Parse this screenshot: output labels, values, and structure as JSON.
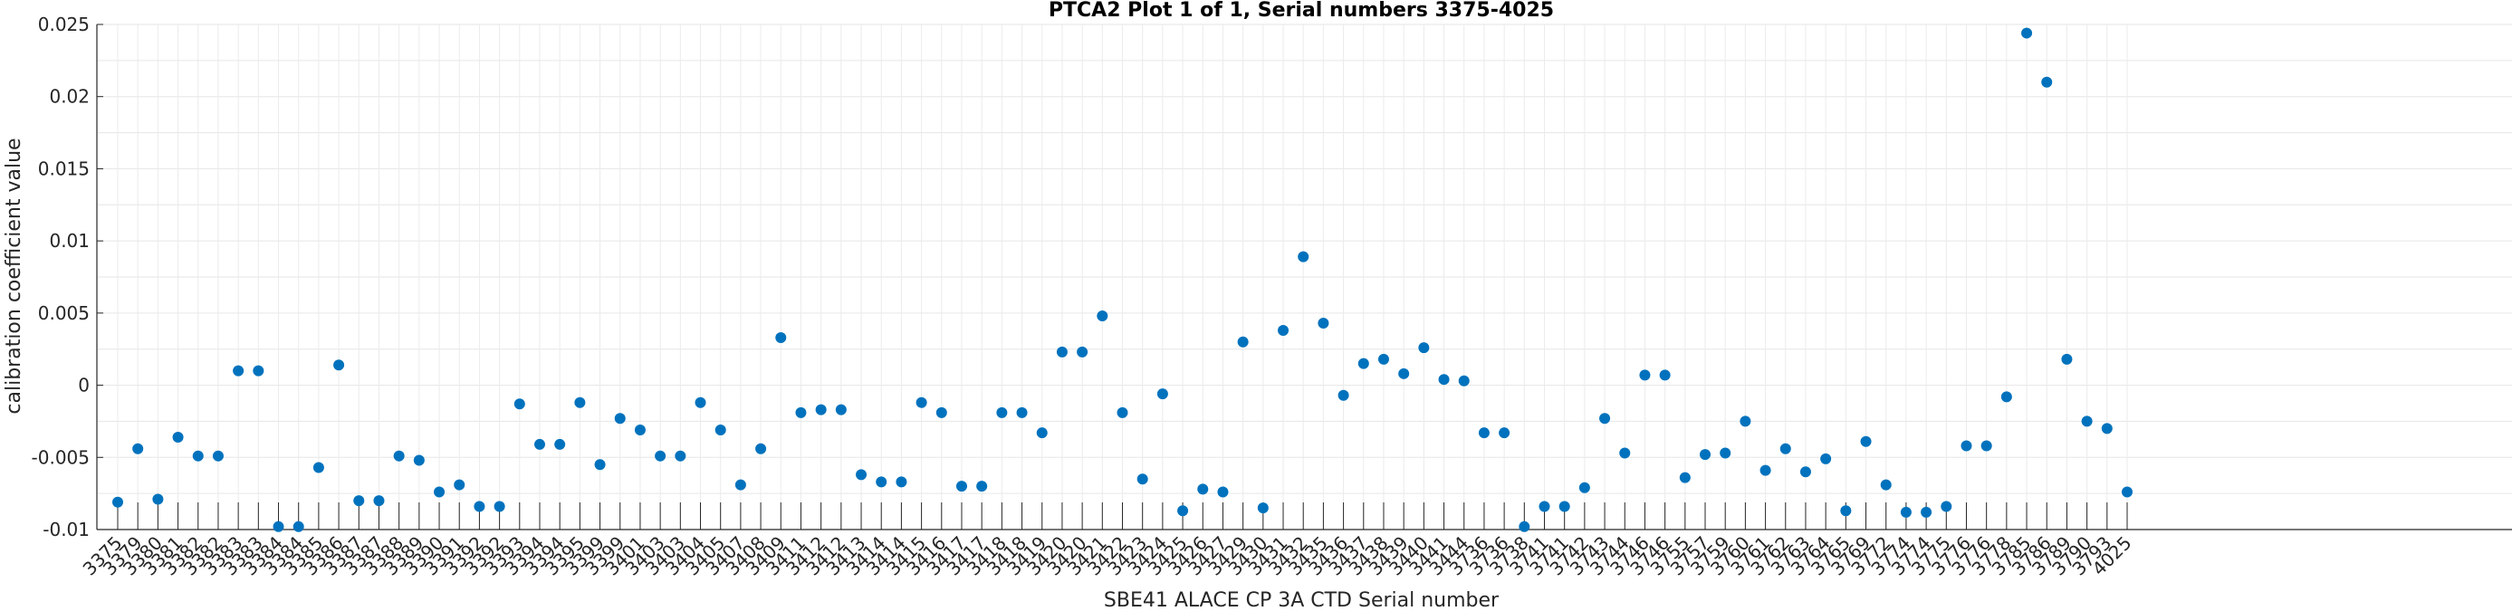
{
  "chart_data": {
    "type": "scatter",
    "title": "PTCA2 Plot 1 of 1, Serial numbers 3375-4025",
    "xlabel": "SBE41 ALACE CP 3A CTD Serial number",
    "ylabel": "calibration coefficient value",
    "ylim": [
      -0.01,
      0.025
    ],
    "yticks": [
      "-0.01",
      "-0.005",
      "0",
      "0.005",
      "0.01",
      "0.015",
      "0.02",
      "0.025"
    ],
    "grid": true,
    "marker_color": "#0072BD",
    "categories": [
      "3375",
      "3379",
      "3380",
      "3381",
      "3382",
      "3382",
      "3383",
      "3383",
      "3384",
      "3384",
      "3385",
      "3386",
      "3387",
      "3387",
      "3388",
      "3389",
      "3390",
      "3391",
      "3392",
      "3392",
      "3393",
      "3394",
      "3394",
      "3395",
      "3399",
      "3399",
      "3401",
      "3403",
      "3403",
      "3404",
      "3405",
      "3407",
      "3408",
      "3409",
      "3411",
      "3412",
      "3412",
      "3413",
      "3414",
      "3414",
      "3415",
      "3416",
      "3417",
      "3417",
      "3418",
      "3418",
      "3419",
      "3420",
      "3420",
      "3421",
      "3422",
      "3423",
      "3424",
      "3425",
      "3426",
      "3427",
      "3429",
      "3430",
      "3431",
      "3432",
      "3435",
      "3436",
      "3437",
      "3438",
      "3439",
      "3440",
      "3441",
      "3444",
      "3736",
      "3736",
      "3738",
      "3741",
      "3741",
      "3742",
      "3743",
      "3744",
      "3746",
      "3746",
      "3755",
      "3757",
      "3759",
      "3760",
      "3761",
      "3762",
      "3763",
      "3764",
      "3765",
      "3769",
      "3772",
      "3774",
      "3774",
      "3775",
      "3776",
      "3776",
      "3778",
      "3785",
      "3786",
      "3789",
      "3790",
      "3793",
      "4025"
    ],
    "values": [
      -0.0081,
      -0.0044,
      -0.0079,
      -0.0036,
      -0.0049,
      -0.0049,
      0.001,
      0.001,
      -0.0098,
      -0.0098,
      -0.0057,
      0.0014,
      -0.008,
      -0.008,
      -0.0049,
      -0.0052,
      -0.0074,
      -0.0069,
      -0.0084,
      -0.0084,
      -0.0013,
      -0.0041,
      -0.0041,
      -0.0012,
      -0.0055,
      -0.0023,
      -0.0031,
      -0.0049,
      -0.0049,
      -0.0012,
      -0.0031,
      -0.0069,
      -0.0044,
      0.0033,
      -0.0019,
      -0.0017,
      -0.0017,
      -0.0062,
      -0.0067,
      -0.0067,
      -0.0012,
      -0.0019,
      -0.007,
      -0.007,
      -0.0019,
      -0.0019,
      -0.0033,
      0.0023,
      0.0023,
      0.0048,
      -0.0019,
      -0.0065,
      -0.0006,
      -0.0087,
      -0.0072,
      -0.0074,
      0.003,
      -0.0085,
      0.0038,
      0.0089,
      0.0043,
      -0.0007,
      0.0015,
      0.0018,
      0.0008,
      0.0026,
      0.0004,
      0.0003,
      -0.0033,
      -0.0033,
      -0.0098,
      -0.0084,
      -0.0084,
      -0.0071,
      -0.0023,
      -0.0047,
      0.0007,
      0.0007,
      -0.0064,
      -0.0048,
      -0.0047,
      -0.0025,
      -0.0059,
      -0.0044,
      -0.006,
      -0.0051,
      -0.0087,
      -0.0039,
      -0.0069,
      -0.0088,
      -0.0088,
      -0.0084,
      -0.0042,
      -0.0042,
      -0.0008,
      0.0244,
      0.021,
      0.0018,
      -0.0025,
      -0.003,
      -0.0074
    ]
  }
}
